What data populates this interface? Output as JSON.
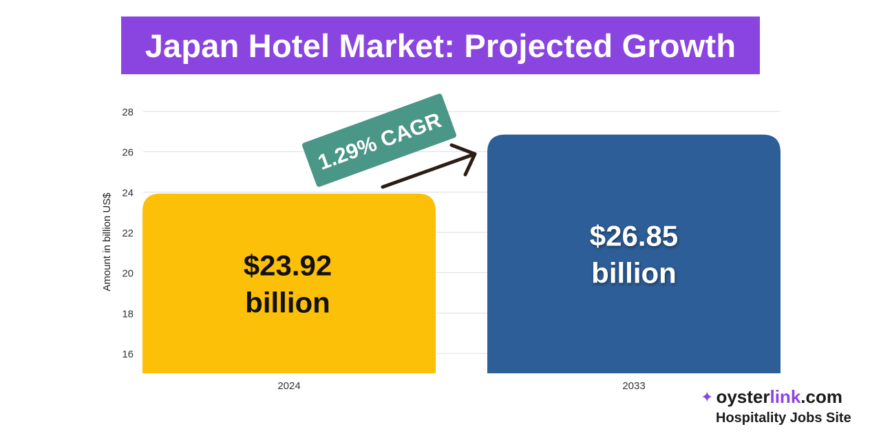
{
  "title": "Japan Hotel Market: Projected Growth",
  "chart_data": {
    "type": "bar",
    "categories": [
      "2024",
      "2033"
    ],
    "values": [
      23.92,
      26.85
    ],
    "value_labels": [
      [
        "$23.92",
        "billion"
      ],
      [
        "$26.85",
        "billion"
      ]
    ],
    "colors": [
      "#fcc009",
      "#2d5e97"
    ],
    "label_colors": [
      "#111111",
      "#ffffff"
    ],
    "ylabel": "Amount in billion US$",
    "xlabel": "",
    "ylim": [
      15,
      28
    ],
    "yticks": [
      16,
      18,
      20,
      22,
      24,
      26,
      28
    ],
    "grid": true,
    "annotation": {
      "text": "1.29% CAGR",
      "color": "#4a9687"
    }
  },
  "brand": {
    "name_part1": "oyster",
    "name_part2": "link",
    "name_part3": ".com",
    "tagline": "Hospitality Jobs Site",
    "icon": "oyster-logo-icon"
  }
}
